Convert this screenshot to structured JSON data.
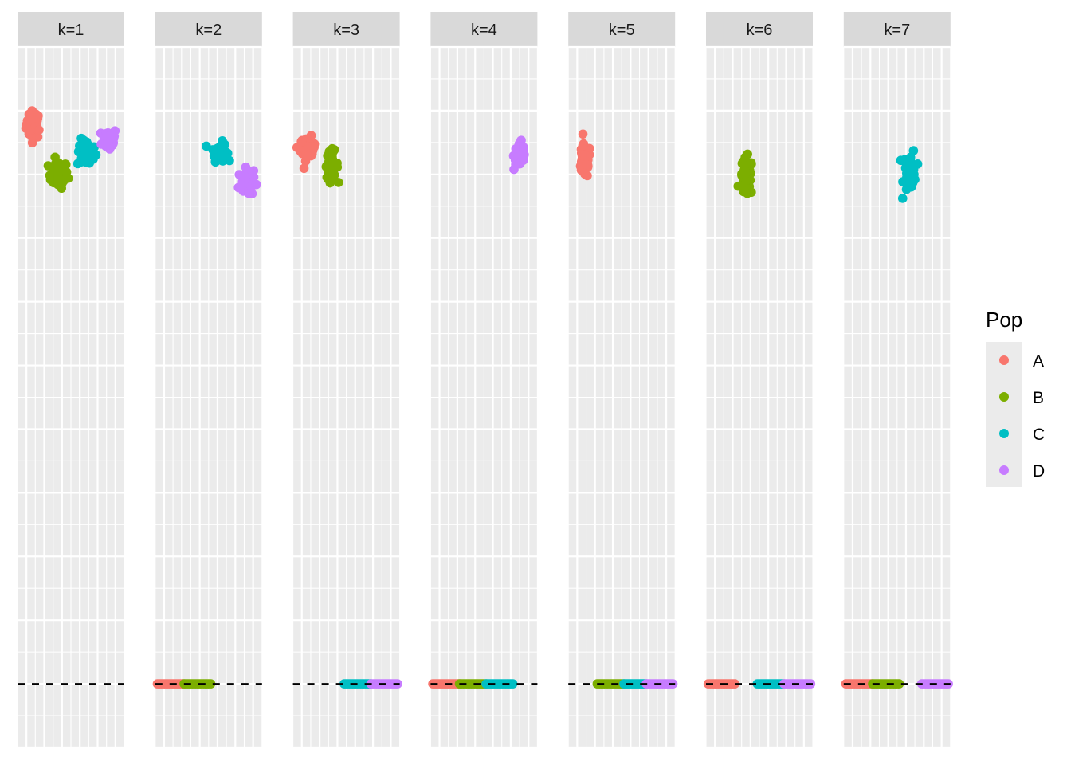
{
  "chart_data": {
    "type": "scatter",
    "title": "",
    "xlabel": "",
    "ylabel": "",
    "legend": {
      "title": "Pop",
      "position": "right"
    },
    "colors": {
      "A": "#F8766D",
      "B": "#7CAE00",
      "C": "#00BFC4",
      "D": "#C77CFF"
    },
    "panel_background": "#EBEBEB",
    "strip_background": "#D9D9D9",
    "grid": true,
    "xlim": [
      0,
      1
    ],
    "ylim": [
      -0.1,
      1
    ],
    "reference_line": {
      "y": 0,
      "style": "dashed",
      "color": "#000000"
    },
    "panels": [
      {
        "label": "k=1",
        "clusters": [
          {
            "pop": "A",
            "x": 0.15,
            "y": 0.878,
            "sx": 0.07,
            "sy": 0.018,
            "n": 40
          },
          {
            "pop": "B",
            "x": 0.38,
            "y": 0.8,
            "sx": 0.09,
            "sy": 0.018,
            "n": 40
          },
          {
            "pop": "C",
            "x": 0.65,
            "y": 0.833,
            "sx": 0.09,
            "sy": 0.018,
            "n": 40
          },
          {
            "pop": "D",
            "x": 0.86,
            "y": 0.855,
            "sx": 0.07,
            "sy": 0.015,
            "n": 40
          }
        ],
        "baseline": []
      },
      {
        "label": "k=2",
        "clusters": [
          {
            "pop": "C",
            "x": 0.6,
            "y": 0.836,
            "sx": 0.07,
            "sy": 0.012,
            "n": 40
          },
          {
            "pop": "D",
            "x": 0.85,
            "y": 0.787,
            "sx": 0.07,
            "sy": 0.018,
            "n": 40
          }
        ],
        "baseline": [
          {
            "pop": "A",
            "x0": 0.02,
            "x1": 0.27
          },
          {
            "pop": "B",
            "x0": 0.27,
            "x1": 0.52
          }
        ]
      },
      {
        "label": "k=3",
        "clusters": [
          {
            "pop": "A",
            "x": 0.14,
            "y": 0.84,
            "sx": 0.07,
            "sy": 0.015,
            "n": 40
          },
          {
            "pop": "B",
            "x": 0.36,
            "y": 0.815,
            "sx": 0.06,
            "sy": 0.018,
            "n": 40
          }
        ],
        "baseline": [
          {
            "pop": "C",
            "x0": 0.48,
            "x1": 0.73
          },
          {
            "pop": "D",
            "x0": 0.73,
            "x1": 0.98
          }
        ]
      },
      {
        "label": "k=4",
        "clusters": [
          {
            "pop": "D",
            "x": 0.84,
            "y": 0.83,
            "sx": 0.06,
            "sy": 0.02,
            "n": 40
          }
        ],
        "baseline": [
          {
            "pop": "A",
            "x0": 0.02,
            "x1": 0.27
          },
          {
            "pop": "B",
            "x0": 0.27,
            "x1": 0.52
          },
          {
            "pop": "C",
            "x0": 0.52,
            "x1": 0.77
          }
        ]
      },
      {
        "label": "k=5",
        "clusters": [
          {
            "pop": "A",
            "x": 0.15,
            "y": 0.82,
            "sx": 0.06,
            "sy": 0.022,
            "n": 40
          }
        ],
        "baseline": [
          {
            "pop": "B",
            "x0": 0.27,
            "x1": 0.52
          },
          {
            "pop": "C",
            "x0": 0.52,
            "x1": 0.73
          },
          {
            "pop": "D",
            "x0": 0.73,
            "x1": 0.98
          }
        ]
      },
      {
        "label": "k=6",
        "clusters": [
          {
            "pop": "B",
            "x": 0.38,
            "y": 0.795,
            "sx": 0.06,
            "sy": 0.025,
            "n": 40
          }
        ],
        "baseline": [
          {
            "pop": "A",
            "x0": 0.02,
            "x1": 0.27
          },
          {
            "pop": "C",
            "x0": 0.48,
            "x1": 0.73
          },
          {
            "pop": "D",
            "x0": 0.73,
            "x1": 0.98
          }
        ]
      },
      {
        "label": "k=7",
        "clusters": [
          {
            "pop": "C",
            "x": 0.62,
            "y": 0.805,
            "sx": 0.06,
            "sy": 0.028,
            "n": 40
          }
        ],
        "baseline": [
          {
            "pop": "A",
            "x0": 0.02,
            "x1": 0.27
          },
          {
            "pop": "B",
            "x0": 0.27,
            "x1": 0.52
          },
          {
            "pop": "D",
            "x0": 0.73,
            "x1": 0.98
          }
        ]
      }
    ]
  }
}
